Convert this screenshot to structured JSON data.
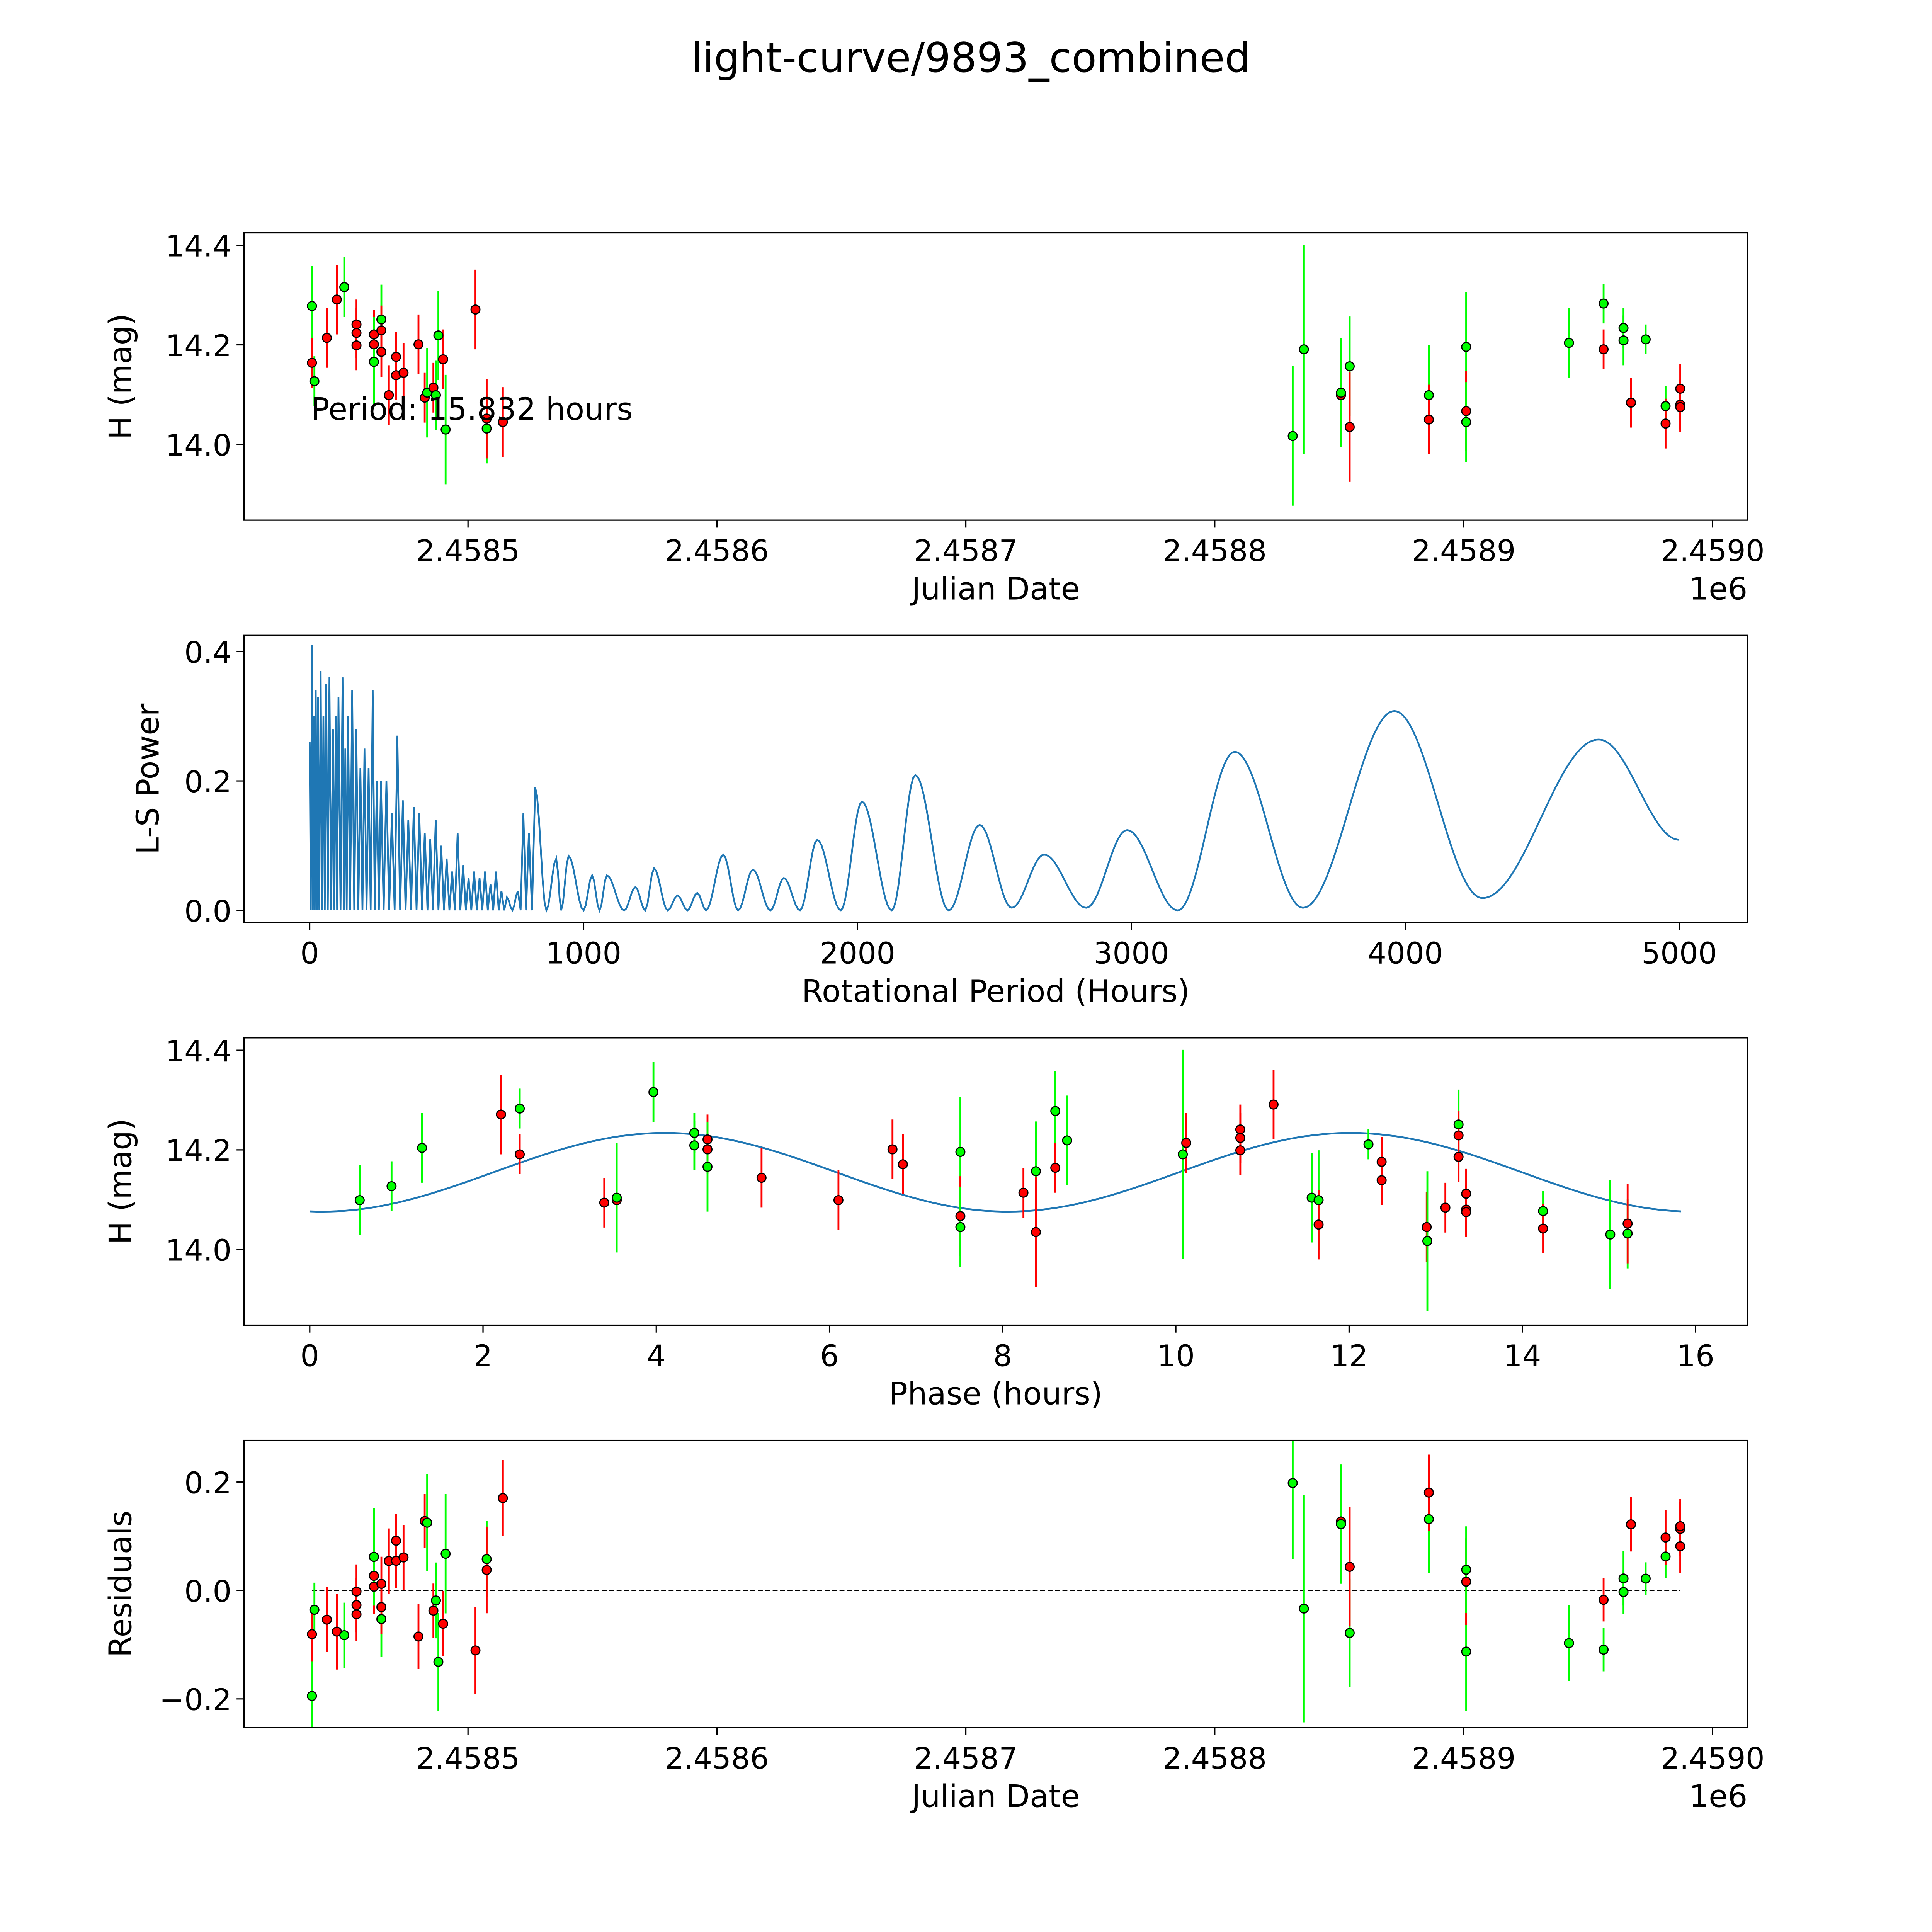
{
  "chart_data": {
    "title": "light-curve/9893_combined",
    "colors": {
      "green": "#00ff00",
      "red": "#ff0000",
      "line": "#1f77b4",
      "marker_edge": "#000000"
    },
    "period_hours": 15.832,
    "period_label": "Period: 15.832 hours",
    "phase_epoch_jd": 2458400,
    "model": {
      "mean": 14.155,
      "amplitude": 0.079,
      "peak_phase": 4.1,
      "cycle_hours": 7.916
    },
    "points": [
      [
        2458437.3,
        14.278,
        0.08,
        "g"
      ],
      [
        2458437.3,
        14.164,
        0.05,
        "r"
      ],
      [
        2458438.3,
        14.127,
        0.05,
        "g"
      ],
      [
        2458443.3,
        14.214,
        0.06,
        "r"
      ],
      [
        2458447.3,
        14.291,
        0.07,
        "r"
      ],
      [
        2458450.3,
        14.316,
        0.06,
        "g"
      ],
      [
        2458455.2,
        14.241,
        0.05,
        "r"
      ],
      [
        2458455.2,
        14.224,
        0.05,
        "r"
      ],
      [
        2458455.2,
        14.199,
        0.05,
        "r"
      ],
      [
        2458462.2,
        14.221,
        0.05,
        "r"
      ],
      [
        2458462.2,
        14.201,
        0.05,
        "r"
      ],
      [
        2458462.2,
        14.166,
        0.09,
        "g"
      ],
      [
        2458465.2,
        14.251,
        0.07,
        "g"
      ],
      [
        2458465.2,
        14.229,
        0.05,
        "r"
      ],
      [
        2458465.2,
        14.186,
        0.05,
        "r"
      ],
      [
        2458468.2,
        14.099,
        0.06,
        "r"
      ],
      [
        2458471.1,
        14.176,
        0.05,
        "r"
      ],
      [
        2458471.1,
        14.139,
        0.05,
        "r"
      ],
      [
        2458474.1,
        14.144,
        0.06,
        "r"
      ],
      [
        2458480.1,
        14.201,
        0.06,
        "r"
      ],
      [
        2458482.6,
        14.094,
        0.05,
        "r"
      ],
      [
        2458483.6,
        14.104,
        0.09,
        "g"
      ],
      [
        2458486.1,
        14.114,
        0.05,
        "r"
      ],
      [
        2458487.1,
        14.099,
        0.07,
        "g"
      ],
      [
        2458488.1,
        14.219,
        0.09,
        "g"
      ],
      [
        2458490.0,
        14.171,
        0.06,
        "r"
      ],
      [
        2458491.0,
        14.03,
        0.11,
        "g"
      ],
      [
        2458503.0,
        14.271,
        0.08,
        "r"
      ],
      [
        2458507.5,
        14.032,
        0.07,
        "g"
      ],
      [
        2458507.5,
        14.052,
        0.08,
        "r"
      ],
      [
        2458514.0,
        14.045,
        0.07,
        "r"
      ],
      [
        2458831.3,
        14.017,
        0.14,
        "g"
      ],
      [
        2458835.8,
        14.191,
        0.21,
        "g"
      ],
      [
        2458850.7,
        14.099,
        0.07,
        "r"
      ],
      [
        2458850.7,
        14.104,
        0.11,
        "g"
      ],
      [
        2458854.2,
        14.157,
        0.1,
        "g"
      ],
      [
        2458854.2,
        14.035,
        0.11,
        "r"
      ],
      [
        2458886.0,
        14.099,
        0.1,
        "g"
      ],
      [
        2458886.0,
        14.05,
        0.07,
        "r"
      ],
      [
        2458901.0,
        14.196,
        0.11,
        "g"
      ],
      [
        2458901.0,
        14.067,
        0.08,
        "r"
      ],
      [
        2458901.0,
        14.045,
        0.08,
        "g"
      ],
      [
        2458942.3,
        14.204,
        0.07,
        "g"
      ],
      [
        2458956.2,
        14.191,
        0.04,
        "r"
      ],
      [
        2458956.2,
        14.283,
        0.04,
        "g"
      ],
      [
        2458964.2,
        14.234,
        0.04,
        "g"
      ],
      [
        2458964.2,
        14.209,
        0.05,
        "g"
      ],
      [
        2458967.2,
        14.084,
        0.05,
        "r"
      ],
      [
        2458973.1,
        14.211,
        0.03,
        "g"
      ],
      [
        2458981.1,
        14.077,
        0.04,
        "g"
      ],
      [
        2458981.1,
        14.042,
        0.05,
        "r"
      ],
      [
        2458987.0,
        14.112,
        0.05,
        "r"
      ],
      [
        2458987.0,
        14.08,
        0.05,
        "r"
      ],
      [
        2458987.0,
        14.075,
        0.05,
        "r"
      ]
    ],
    "periodogram": {
      "type": "line",
      "spikes": [
        [
          0,
          0.26
        ],
        [
          8,
          0.41
        ],
        [
          15,
          0.3
        ],
        [
          22,
          0.34
        ],
        [
          30,
          0.33
        ],
        [
          40,
          0.37
        ],
        [
          50,
          0.3
        ],
        [
          60,
          0.35
        ],
        [
          72,
          0.36
        ],
        [
          85,
          0.28
        ],
        [
          95,
          0.3
        ],
        [
          105,
          0.33
        ],
        [
          120,
          0.36
        ],
        [
          130,
          0.25
        ],
        [
          140,
          0.3
        ],
        [
          155,
          0.34
        ],
        [
          170,
          0.28
        ],
        [
          185,
          0.22
        ],
        [
          200,
          0.25
        ],
        [
          215,
          0.22
        ],
        [
          230,
          0.34
        ],
        [
          245,
          0.2
        ],
        [
          260,
          0.2
        ],
        [
          280,
          0.2
        ],
        [
          300,
          0.15
        ],
        [
          320,
          0.27
        ],
        [
          340,
          0.17
        ],
        [
          360,
          0.14
        ],
        [
          380,
          0.16
        ],
        [
          400,
          0.15
        ],
        [
          420,
          0.12
        ],
        [
          440,
          0.11
        ],
        [
          460,
          0.14
        ],
        [
          480,
          0.1
        ],
        [
          500,
          0.08
        ],
        [
          520,
          0.06
        ],
        [
          540,
          0.12
        ],
        [
          560,
          0.07
        ],
        [
          580,
          0.05
        ],
        [
          600,
          0.06
        ],
        [
          620,
          0.05
        ],
        [
          640,
          0.06
        ],
        [
          660,
          0.04
        ],
        [
          680,
          0.06
        ],
        [
          700,
          0.03
        ],
        [
          720,
          0.02
        ],
        [
          760,
          0.03
        ],
        [
          780,
          0.15
        ],
        [
          800,
          0.12
        ]
      ],
      "smooth": [
        [
          823,
          0.19
        ],
        [
          864,
          0
        ],
        [
          900,
          0.08
        ],
        [
          918,
          0
        ],
        [
          945,
          0.084
        ],
        [
          1000,
          0
        ],
        [
          1031,
          0.054
        ],
        [
          1058,
          0
        ],
        [
          1085,
          0.054
        ],
        [
          1148,
          0
        ],
        [
          1189,
          0.036
        ],
        [
          1225,
          0
        ],
        [
          1257,
          0.065
        ],
        [
          1307,
          0
        ],
        [
          1343,
          0.023
        ],
        [
          1379,
          0
        ],
        [
          1415,
          0.027
        ],
        [
          1447,
          0
        ],
        [
          1510,
          0.086
        ],
        [
          1564,
          0
        ],
        [
          1618,
          0.063
        ],
        [
          1682,
          0
        ],
        [
          1731,
          0.05
        ],
        [
          1790,
          0
        ],
        [
          1853,
          0.109
        ],
        [
          1939,
          0
        ],
        [
          2016,
          0.168
        ],
        [
          2125,
          0
        ],
        [
          2211,
          0.209
        ],
        [
          2333,
          0
        ],
        [
          2446,
          0.132
        ],
        [
          2563,
          0.004
        ],
        [
          2681,
          0.086
        ],
        [
          2835,
          0.004
        ],
        [
          2984,
          0.124
        ],
        [
          3169,
          0
        ],
        [
          3377,
          0.245
        ],
        [
          3626,
          0.004
        ],
        [
          3960,
          0.308
        ],
        [
          4281,
          0.019
        ],
        [
          4706,
          0.264
        ],
        [
          5000,
          0.109
        ]
      ]
    },
    "panels": [
      {
        "type": "scatter",
        "xlabel": "Julian Date",
        "ylabel": "H (mag)",
        "offset_label": "1e6",
        "xlim": [
          2458410,
          2459014
        ],
        "ylim": [
          13.848,
          14.425
        ],
        "xticks": [
          [
            2458500,
            "2.4585"
          ],
          [
            2458600,
            "2.4586"
          ],
          [
            2458700,
            "2.4587"
          ],
          [
            2458800,
            "2.4588"
          ],
          [
            2458900,
            "2.4589"
          ],
          [
            2459000,
            "2.4590"
          ]
        ],
        "yticks": [
          [
            14.0,
            "14.0"
          ],
          [
            14.2,
            "14.2"
          ],
          [
            14.4,
            "14.4"
          ]
        ]
      },
      {
        "type": "line",
        "xlabel": "Rotational Period (Hours)",
        "ylabel": "L-S Power",
        "xlim": [
          -240,
          5249
        ],
        "ylim": [
          -0.019,
          0.425
        ],
        "xticks": [
          [
            0,
            "0"
          ],
          [
            1000,
            "1000"
          ],
          [
            2000,
            "2000"
          ],
          [
            3000,
            "3000"
          ],
          [
            4000,
            "4000"
          ],
          [
            5000,
            "5000"
          ]
        ],
        "yticks": [
          [
            0,
            "0.0"
          ],
          [
            0.2,
            "0.2"
          ],
          [
            0.4,
            "0.4"
          ]
        ]
      },
      {
        "type": "scatter",
        "xlabel": "Phase (hours)",
        "ylabel": "H (mag)",
        "xlim": [
          -0.76,
          16.6
        ],
        "ylim": [
          13.848,
          14.425
        ],
        "xticks": [
          [
            0,
            "0"
          ],
          [
            2,
            "2"
          ],
          [
            4,
            "4"
          ],
          [
            6,
            "6"
          ],
          [
            8,
            "8"
          ],
          [
            10,
            "10"
          ],
          [
            12,
            "12"
          ],
          [
            14,
            "14"
          ],
          [
            16,
            "16"
          ]
        ],
        "yticks": [
          [
            14.0,
            "14.0"
          ],
          [
            14.2,
            "14.2"
          ],
          [
            14.4,
            "14.4"
          ]
        ]
      },
      {
        "type": "scatter",
        "xlabel": "Julian Date",
        "ylabel": "Residuals",
        "offset_label": "1e6",
        "xlim": [
          2458410,
          2459014
        ],
        "ylim": [
          -0.253,
          0.277
        ],
        "xticks": [
          [
            2458500,
            "2.4585"
          ],
          [
            2458600,
            "2.4586"
          ],
          [
            2458700,
            "2.4587"
          ],
          [
            2458800,
            "2.4588"
          ],
          [
            2458900,
            "2.4589"
          ],
          [
            2459000,
            "2.4590"
          ]
        ],
        "yticks": [
          [
            -0.2,
            "−0.2"
          ],
          [
            0,
            "0.0"
          ],
          [
            0.2,
            "0.2"
          ]
        ]
      }
    ]
  }
}
